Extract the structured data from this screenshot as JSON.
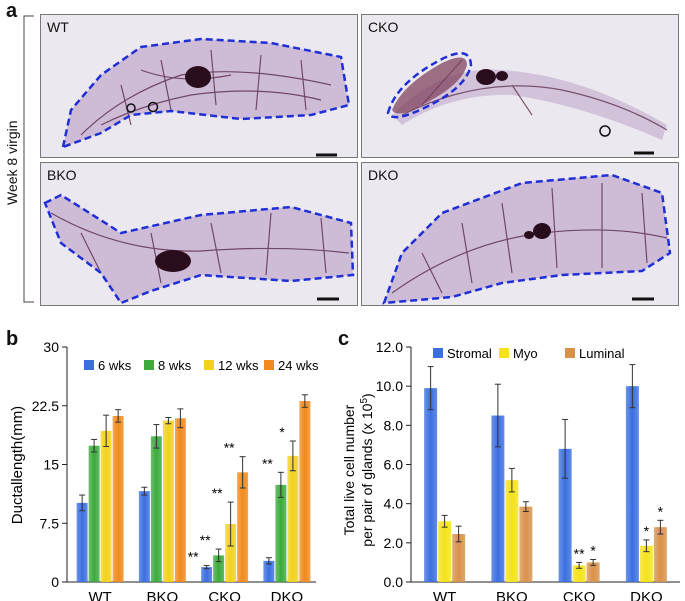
{
  "panel_a": {
    "letter": "a",
    "side_label": "Week 8 virgin",
    "images": [
      {
        "label": "WT"
      },
      {
        "label": "CKO"
      },
      {
        "label": "BKO"
      },
      {
        "label": "DKO"
      }
    ]
  },
  "colors": {
    "outline": "#1f2fd6",
    "tissue": "#b9a3c4",
    "duct": "#5b2a4a",
    "background": "#eae6ee"
  },
  "chart_data": [
    {
      "type": "bar",
      "panel_letter": "b",
      "ylabel": "Ductallength(mm)",
      "xlabel": "",
      "categories": [
        "WT",
        "BKO",
        "CKO",
        "DKO"
      ],
      "ylim": [
        0,
        30
      ],
      "yticks": [
        "0",
        "7.5",
        "15",
        "22.5",
        "30"
      ],
      "ytick_values": [
        0,
        7.5,
        15,
        22.5,
        30
      ],
      "legend_position": "top-right",
      "series": [
        {
          "name": "6 wks",
          "color": "#3b6fe0",
          "values": [
            10.1,
            11.6,
            1.9,
            2.7
          ],
          "errors": [
            1.0,
            0.5,
            0.2,
            0.4
          ],
          "significance": [
            "",
            "",
            "**",
            ""
          ]
        },
        {
          "name": "8 wks",
          "color": "#3caa3c",
          "values": [
            17.4,
            18.6,
            3.4,
            12.4
          ],
          "errors": [
            0.8,
            1.5,
            0.8,
            1.6
          ],
          "significance": [
            "",
            "",
            "**",
            "**"
          ]
        },
        {
          "name": "12 wks",
          "color": "#f2d21b",
          "values": [
            19.3,
            20.6,
            7.4,
            16.1
          ],
          "errors": [
            2.0,
            0.4,
            2.8,
            1.9
          ],
          "significance": [
            "",
            "",
            "**",
            "*"
          ]
        },
        {
          "name": "24 wks",
          "color": "#f08a1d",
          "values": [
            21.2,
            20.9,
            14.0,
            23.1
          ],
          "errors": [
            0.8,
            1.2,
            2.0,
            0.8
          ],
          "significance": [
            "",
            "",
            "**",
            ""
          ]
        }
      ]
    },
    {
      "type": "bar",
      "panel_letter": "c",
      "ylabel_line1": "Total live cell number",
      "ylabel_line2": "per pair of glands (x 10",
      "ylabel_sup": "5",
      "ylabel_end": ")",
      "xlabel": "",
      "categories": [
        "WT",
        "BKO",
        "CKO",
        "DKO"
      ],
      "ylim": [
        0,
        12
      ],
      "yticks": [
        "0.0",
        "2.0",
        "4.0",
        "6.0",
        "8.0",
        "10.0",
        "12.0"
      ],
      "ytick_values": [
        0,
        2,
        4,
        6,
        8,
        10,
        12
      ],
      "legend_position": "top",
      "series": [
        {
          "name": "Stromal",
          "color": "#3b6fe0",
          "values": [
            9.9,
            8.5,
            6.8,
            10.0
          ],
          "errors": [
            1.1,
            1.6,
            1.5,
            1.1
          ],
          "significance": [
            "",
            "",
            "",
            ""
          ]
        },
        {
          "name": "Myo",
          "color": "#f5e21a",
          "values": [
            3.1,
            5.2,
            0.85,
            1.85
          ],
          "errors": [
            0.3,
            0.6,
            0.15,
            0.3
          ],
          "significance": [
            "",
            "",
            "**",
            "*"
          ]
        },
        {
          "name": "Luminal",
          "color": "#d9914a",
          "values": [
            2.45,
            3.85,
            1.0,
            2.8
          ],
          "errors": [
            0.4,
            0.25,
            0.15,
            0.35
          ],
          "significance": [
            "",
            "",
            "*",
            "*"
          ]
        }
      ]
    }
  ]
}
